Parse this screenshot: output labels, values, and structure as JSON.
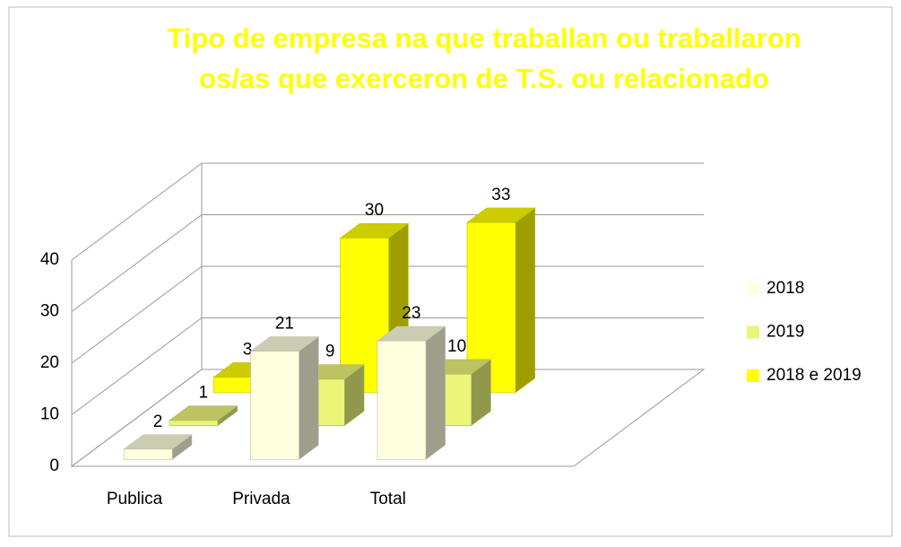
{
  "chart_data": {
    "type": "bar3d",
    "title": "Tipo de empresa na que traballan ou traballaron",
    "subtitle": "os/as que exerceron de T.S. ou relacionado",
    "categories": [
      "Publica",
      "Privada",
      "Total"
    ],
    "series": [
      {
        "name": "2018",
        "color": "#ffffe0",
        "values": [
          2,
          21,
          23
        ]
      },
      {
        "name": "2019",
        "color": "#eaf57a",
        "values": [
          1,
          9,
          10
        ]
      },
      {
        "name": "2018 e 2019",
        "color": "#ffff00",
        "values": [
          3,
          30,
          33
        ]
      }
    ],
    "ylim": [
      0,
      40
    ],
    "yticks": [
      0,
      10,
      20,
      30,
      40
    ],
    "grid": true,
    "legend": "right"
  }
}
